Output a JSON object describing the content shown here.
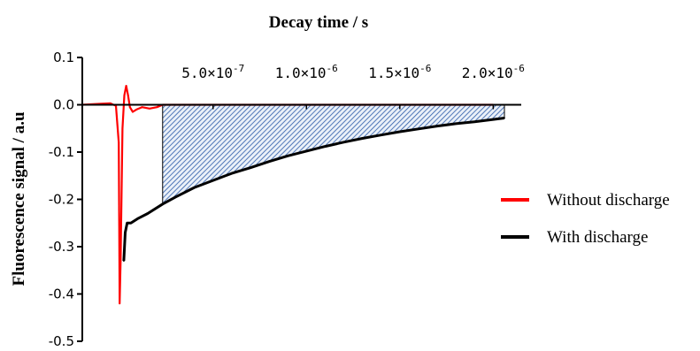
{
  "chart_data": {
    "type": "line",
    "title": "Decay time / s",
    "xlabel": "Decay time / s",
    "ylabel": "Fluorescence signal / a.u",
    "xlim": [
      -2e-07,
      2.15e-06
    ],
    "ylim": [
      -0.5,
      0.1
    ],
    "x_ticks": [
      {
        "value": 5e-07,
        "mantissa": "5.0",
        "times": "×10",
        "exponent": "-7"
      },
      {
        "value": 1e-06,
        "mantissa": "1.0",
        "times": "×10",
        "exponent": "-6"
      },
      {
        "value": 1.5e-06,
        "mantissa": "1.5",
        "times": "×10",
        "exponent": "-6"
      },
      {
        "value": 2e-06,
        "mantissa": "2.0",
        "times": "×10",
        "exponent": "-6"
      }
    ],
    "y_ticks": [
      "0.1",
      "0.0",
      "-0.1",
      "-0.2",
      "-0.3",
      "-0.4",
      "-0.5"
    ],
    "y_tick_values": [
      0.1,
      0.0,
      -0.1,
      -0.2,
      -0.3,
      -0.4,
      -0.5
    ],
    "legend_position": "right",
    "series": [
      {
        "name": "Without discharge",
        "color": "#ff0000",
        "x": [
          -2e-07,
          -1e-07,
          -5e-08,
          -2e-08,
          -5e-09,
          0.0,
          5e-09,
          1.5e-08,
          2.5e-08,
          3.5e-08,
          4.5e-08,
          5.5e-08,
          7e-08,
          9e-08,
          1.2e-07,
          1.6e-07,
          2e-07,
          2.3e-07,
          3e-07,
          5e-07,
          1e-06,
          1.5e-06,
          2e-06
        ],
        "values": [
          0.0,
          0.002,
          0.003,
          -0.002,
          -0.08,
          -0.42,
          -0.33,
          -0.05,
          0.02,
          0.04,
          0.02,
          -0.005,
          -0.015,
          -0.01,
          -0.005,
          -0.008,
          -0.005,
          0.0,
          0.0,
          0.0,
          0.0,
          0.0,
          0.0
        ]
      },
      {
        "name": "With discharge",
        "color": "#000000",
        "x": [
          2.2e-08,
          3e-08,
          4e-08,
          6e-08,
          1e-07,
          1.5e-07,
          2.3e-07,
          3e-07,
          4e-07,
          5e-07,
          6e-07,
          7e-07,
          8e-07,
          9e-07,
          1e-06,
          1.1e-06,
          1.2e-06,
          1.3e-06,
          1.4e-06,
          1.5e-06,
          1.6e-06,
          1.7e-06,
          1.8e-06,
          1.9e-06,
          2e-06,
          2.06e-06
        ],
        "values": [
          -0.33,
          -0.27,
          -0.25,
          -0.25,
          -0.24,
          -0.23,
          -0.21,
          -0.195,
          -0.175,
          -0.16,
          -0.145,
          -0.133,
          -0.12,
          -0.108,
          -0.098,
          -0.088,
          -0.079,
          -0.071,
          -0.064,
          -0.057,
          -0.051,
          -0.045,
          -0.04,
          -0.036,
          -0.031,
          -0.028
        ]
      }
    ],
    "shaded_region": {
      "x_start": 2.3e-07,
      "x_end": 2.06e-06,
      "color": "#1f4e9a"
    }
  }
}
